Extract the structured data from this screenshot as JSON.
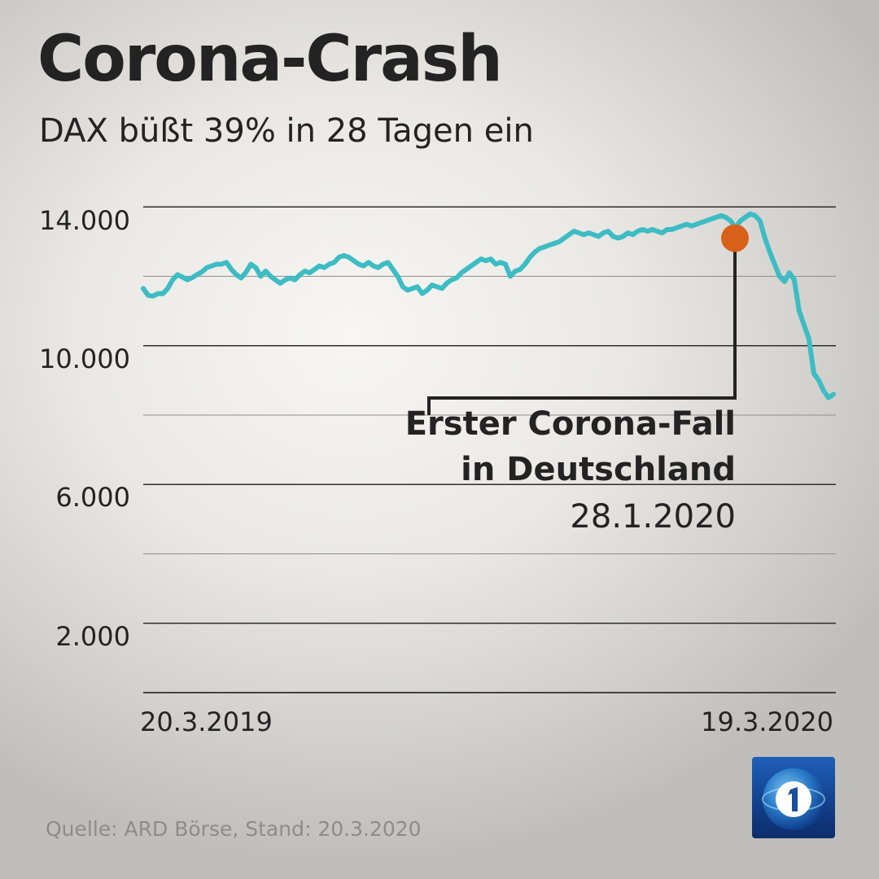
{
  "title": "Corona-Crash",
  "subtitle": "DAX büßt 39% in 28 Tagen ein",
  "source": "Quelle: ARD Börse, Stand: 20.3.2020",
  "colors": {
    "line": "#3dbcc4",
    "marker": "#d9601a",
    "grid": "#3a3a3a",
    "text": "#232323"
  },
  "logo_icon": "tagesschau-1-logo-icon",
  "chart_data": {
    "type": "line",
    "title": "Corona-Crash",
    "subtitle": "DAX büßt 39% in 28 Tagen ein",
    "x_tick_labels": [
      "20.3.2019",
      "19.3.2020"
    ],
    "y_ticks": [
      {
        "value": 14000,
        "label": "14.000"
      },
      {
        "value": 10000,
        "label": "10.000"
      },
      {
        "value": 6000,
        "label": "6.000"
      },
      {
        "value": 2000,
        "label": "2.000"
      }
    ],
    "ylim": [
      0,
      14000
    ],
    "grid": true,
    "series": [
      {
        "values": [
          11650,
          11450,
          11430,
          11500,
          11500,
          11650,
          11900,
          12050,
          11980,
          11900,
          11960,
          12050,
          12130,
          12250,
          12300,
          12350,
          12350,
          12400,
          12200,
          12050,
          11950,
          12120,
          12350,
          12250,
          12000,
          12150,
          12000,
          11900,
          11800,
          11900,
          11950,
          11900,
          12050,
          12150,
          12100,
          12200,
          12300,
          12250,
          12350,
          12400,
          12550,
          12600,
          12550,
          12450,
          12350,
          12300,
          12400,
          12300,
          12250,
          12350,
          12400,
          12200,
          12000,
          11700,
          11600,
          11650,
          11700,
          11500,
          11600,
          11750,
          11700,
          11650,
          11800,
          11900,
          11950,
          12100,
          12200,
          12300,
          12400,
          12500,
          12450,
          12500,
          12350,
          12400,
          12350,
          12000,
          12150,
          12200,
          12350,
          12550,
          12700,
          12800,
          12850,
          12900,
          12950,
          13000,
          13100,
          13200,
          13300,
          13250,
          13200,
          13250,
          13200,
          13150,
          13250,
          13300,
          13150,
          13100,
          13150,
          13250,
          13200,
          13300,
          13350,
          13300,
          13350,
          13300,
          13250,
          13350,
          13350,
          13400,
          13450,
          13500,
          13450,
          13500,
          13550,
          13600,
          13650,
          13700,
          13750,
          13700,
          13600,
          13400,
          13600,
          13700,
          13800,
          13750,
          13600,
          13100,
          12700,
          12350,
          12000,
          11850,
          12100,
          11900,
          11000,
          10600,
          10200,
          9200,
          9000,
          8700,
          8500,
          8600
        ]
      }
    ],
    "annotations": [
      {
        "lines": [
          "Erster Corona-Fall",
          "in Deutschland",
          "28.1.2020"
        ],
        "marker_value": 13100
      }
    ]
  }
}
